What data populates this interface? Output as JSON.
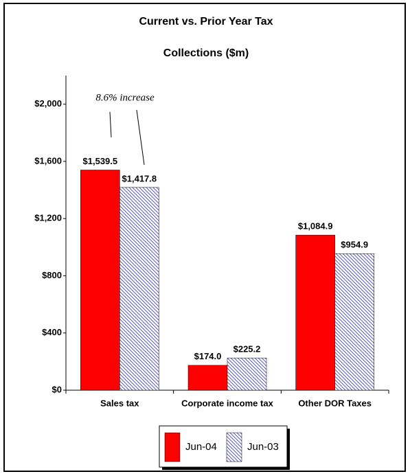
{
  "chart_data": {
    "type": "bar",
    "title": [
      "Current vs. Prior Year Tax",
      "Collections ($m)"
    ],
    "annotation": "8.6% increase",
    "categories": [
      "Sales tax",
      "Corporate income tax",
      "Other DOR Taxes"
    ],
    "series": [
      {
        "name": "Jun-04",
        "color": "#ff0000",
        "values": [
          1539.5,
          174.0,
          1084.9
        ],
        "value_labels": [
          "$1,539.5",
          "$174.0",
          "$1,084.9"
        ]
      },
      {
        "name": "Jun-03",
        "color": "#5a5ab4",
        "hatched": true,
        "values": [
          1417.8,
          225.2,
          954.9
        ],
        "value_labels": [
          "$1,417.8",
          "$225.2",
          "$954.9"
        ]
      }
    ],
    "ylim": [
      0,
      2200
    ],
    "yticks": [
      {
        "value": 0,
        "label": "$0"
      },
      {
        "value": 400,
        "label": "$400"
      },
      {
        "value": 800,
        "label": "$800"
      },
      {
        "value": 1200,
        "label": "$1,200"
      },
      {
        "value": 1600,
        "label": "$1,600"
      },
      {
        "value": 2000,
        "label": "$2,000"
      }
    ],
    "legend": "bottom"
  }
}
